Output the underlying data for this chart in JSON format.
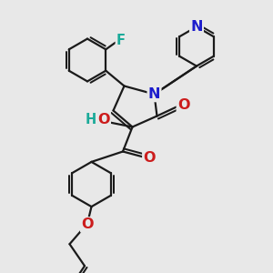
{
  "bg": "#e8e8e8",
  "bc": "#1a1a1a",
  "bw": 1.6,
  "atom_colors": {
    "N": "#1c1ccc",
    "O": "#cc1c1c",
    "F": "#1aaa99",
    "H": "#1aaa99",
    "C": "#1a1a1a"
  },
  "fs": 10.5
}
